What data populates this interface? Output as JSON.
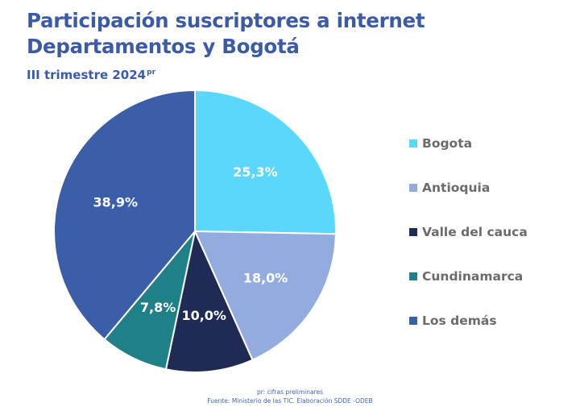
{
  "header": {
    "title_line1": "Participación suscriptores a internet",
    "title_line2": "Departamentos y  Bogotá",
    "subtitle": "III trimestre 2024",
    "subtitle_sup": "pr"
  },
  "chart_data": {
    "type": "pie",
    "title": "Participación suscriptores a internet Departamentos y  Bogotá",
    "subtitle": "III trimestre 2024pr",
    "unit": "%",
    "legend_position": "right",
    "slices": [
      {
        "label": "Bogota",
        "value": 25.3,
        "display": "25,3%",
        "color": "#5bd7fb"
      },
      {
        "label": "Antioquia",
        "value": 18.0,
        "display": "18,0%",
        "color": "#93acdf"
      },
      {
        "label": "Valle del cauca",
        "value": 10.0,
        "display": "10,0%",
        "color": "#1f2a55"
      },
      {
        "label": "Cundinamarca",
        "value": 7.8,
        "display": "7,8%",
        "color": "#1f8087"
      },
      {
        "label": "Los demás",
        "value": 38.9,
        "display": "38,9%",
        "color": "#3a5ea7"
      }
    ]
  },
  "footer": {
    "note": "pr: cifras preliminares",
    "source": "Fuente: Ministerio de las TIC. Elaboración SDDE -ODEB"
  }
}
